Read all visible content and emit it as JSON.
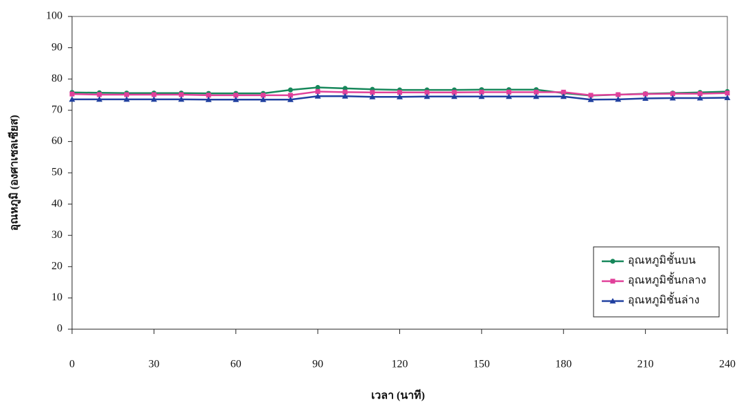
{
  "chart_data": {
    "type": "line",
    "x_label": "เวลา (นาที)",
    "y_label": "อุณหภูมิ (องศาเซลเซียส)",
    "x": [
      0,
      10,
      20,
      30,
      40,
      50,
      60,
      70,
      80,
      90,
      100,
      110,
      120,
      130,
      140,
      150,
      160,
      170,
      180,
      190,
      200,
      210,
      220,
      230,
      240
    ],
    "series": [
      {
        "name": "อุณหภูมิชั้นบน",
        "color": "#16875a",
        "marker": "circle",
        "values": [
          75.7,
          75.6,
          75.5,
          75.5,
          75.5,
          75.4,
          75.4,
          75.4,
          76.5,
          77.3,
          77.0,
          76.7,
          76.5,
          76.5,
          76.5,
          76.6,
          76.6,
          76.6,
          75.5,
          74.7,
          75.0,
          75.3,
          75.5,
          75.7,
          76.0
        ]
      },
      {
        "name": "อุณหภูมิชั้นกลาง",
        "color": "#e0409a",
        "marker": "square",
        "values": [
          75.2,
          75.0,
          75.0,
          75.0,
          75.0,
          74.8,
          74.8,
          74.8,
          74.8,
          76.0,
          75.8,
          75.7,
          75.7,
          75.7,
          75.7,
          75.8,
          75.8,
          75.8,
          75.8,
          74.8,
          75.0,
          75.2,
          75.3,
          75.3,
          75.5
        ]
      },
      {
        "name": "อุณหภูมิชั้นล่าง",
        "color": "#1f3f9f",
        "marker": "triangle",
        "values": [
          73.5,
          73.5,
          73.5,
          73.5,
          73.5,
          73.4,
          73.4,
          73.4,
          73.4,
          74.5,
          74.5,
          74.3,
          74.3,
          74.4,
          74.4,
          74.4,
          74.4,
          74.4,
          74.4,
          73.4,
          73.5,
          73.8,
          73.9,
          73.9,
          74.0
        ]
      }
    ],
    "xlim": [
      0,
      240
    ],
    "xticks": [
      0,
      30,
      60,
      90,
      120,
      150,
      180,
      210,
      240
    ],
    "ylim": [
      0,
      100
    ],
    "yticks": [
      0,
      10,
      20,
      30,
      40,
      50,
      60,
      70,
      80,
      90,
      100
    ],
    "grid": false,
    "legend": "lower right"
  }
}
